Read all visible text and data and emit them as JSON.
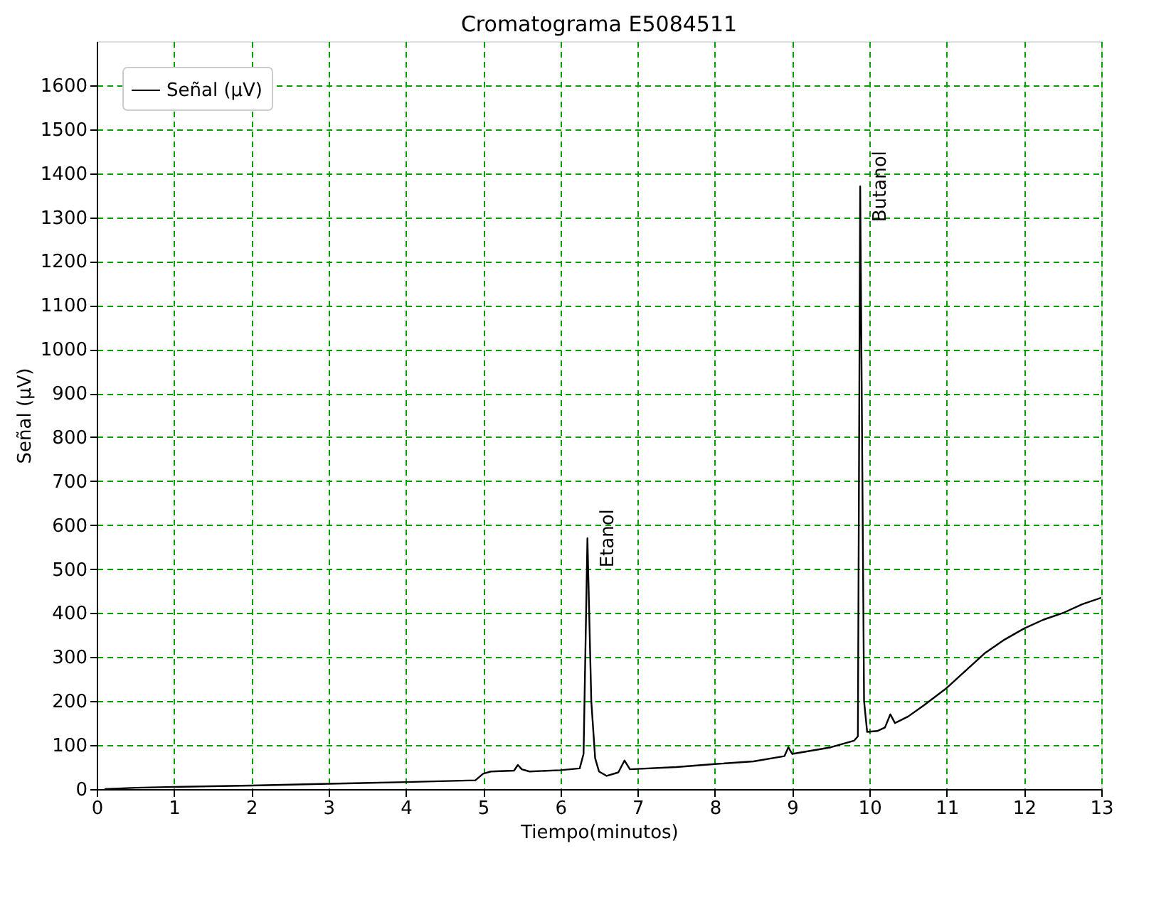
{
  "chart_data": {
    "type": "line",
    "title": "Cromatograma E5084511",
    "xlabel": "Tiempo(minutos)",
    "ylabel": "Señal (µV)",
    "x": [
      0.1,
      0.5,
      1,
      2,
      3,
      4,
      4.9,
      5.0,
      5.1,
      5.4,
      5.45,
      5.5,
      5.6,
      6.0,
      6.25,
      6.3,
      6.35,
      6.4,
      6.45,
      6.5,
      6.6,
      6.75,
      6.83,
      6.9,
      7.5,
      8.0,
      8.5,
      8.9,
      8.95,
      9.0,
      9.5,
      9.8,
      9.85,
      9.88,
      9.93,
      9.97,
      10.1,
      10.2,
      10.27,
      10.33,
      10.5,
      10.7,
      11.0,
      11.25,
      11.5,
      11.75,
      12.0,
      12.25,
      12.5,
      12.75,
      13.0
    ],
    "series": [
      {
        "name": "Señal (µV)",
        "color": "#000000",
        "values": [
          0,
          3,
          5,
          8,
          12,
          16,
          20,
          35,
          40,
          42,
          55,
          45,
          40,
          43,
          47,
          80,
          570,
          200,
          70,
          40,
          30,
          38,
          65,
          45,
          50,
          57,
          63,
          75,
          95,
          80,
          95,
          110,
          120,
          1370,
          200,
          130,
          132,
          140,
          170,
          150,
          165,
          190,
          230,
          270,
          310,
          340,
          365,
          385,
          400,
          420,
          435
        ]
      }
    ],
    "xlim": [
      0,
      13
    ],
    "ylim": [
      0,
      1700
    ],
    "xticks": [
      0,
      1,
      2,
      3,
      4,
      5,
      6,
      7,
      8,
      9,
      10,
      11,
      12,
      13
    ],
    "yticks": [
      0,
      100,
      200,
      300,
      400,
      500,
      600,
      700,
      800,
      900,
      1000,
      1100,
      1200,
      1300,
      1400,
      1500,
      1600
    ],
    "grid": true,
    "legend": "top left",
    "line_style": "solid",
    "marker": "none",
    "annotations": [
      {
        "text": "Etanol",
        "x": 6.35,
        "y": 570
      },
      {
        "text": "Butanol",
        "x": 9.88,
        "y": 1370
      }
    ]
  }
}
